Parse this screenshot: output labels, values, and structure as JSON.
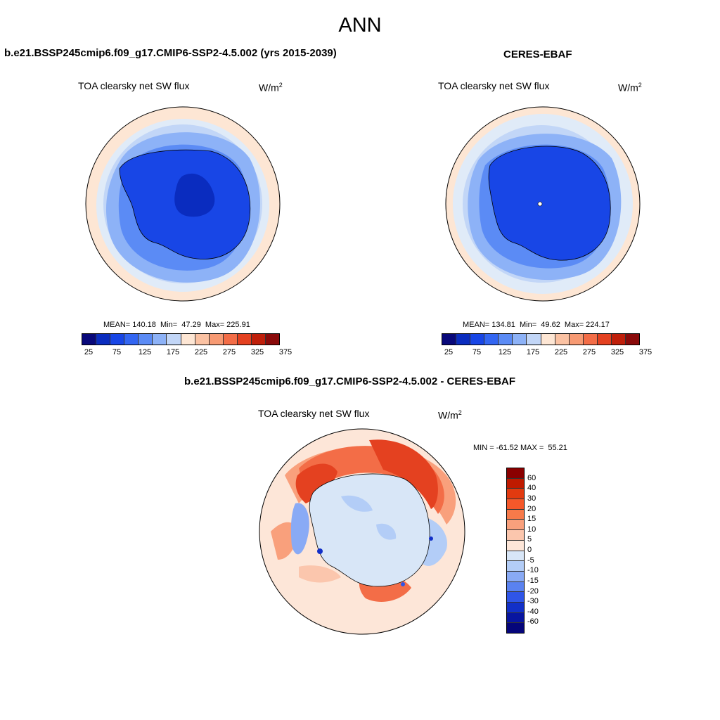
{
  "season": "ANN",
  "top_left": {
    "title": "b.e21.BSSP245cmip6.f09_g17.CMIP6-SSP2-4.5.002 (yrs 2015-2039)",
    "variable": "TOA clearsky net SW flux",
    "units_base": "W/m",
    "units_exp": "2",
    "stats": "MEAN= 140.18  Min=  47.29  Max= 225.91"
  },
  "top_right": {
    "title": "CERES-EBAF",
    "variable": "TOA clearsky net SW flux",
    "units_base": "W/m",
    "units_exp": "2",
    "stats": "MEAN= 134.81  Min=  49.62  Max= 224.17"
  },
  "diff": {
    "title": "b.e21.BSSP245cmip6.f09_g17.CMIP6-SSP2-4.5.002 - CERES-EBAF",
    "variable": "TOA clearsky net SW flux",
    "units_base": "W/m",
    "units_exp": "2",
    "minmax": "MIN = -61.52 MAX =  55.21"
  },
  "abs_colorbar": {
    "colors": [
      "#08087a",
      "#0a2cbf",
      "#1846e6",
      "#3366f2",
      "#5b8bf5",
      "#8db2f7",
      "#c2d6f7",
      "#fde6d4",
      "#fbc2a3",
      "#f79a73",
      "#f36d47",
      "#e44120",
      "#bf1f0a",
      "#8a0a0a"
    ],
    "tick_labels": [
      "25",
      "75",
      "125",
      "175",
      "225",
      "275",
      "325",
      "375"
    ]
  },
  "diff_colorbar": {
    "colors": [
      "#8a0000",
      "#bf1a00",
      "#e23a10",
      "#f5582a",
      "#f77a4a",
      "#f9a07c",
      "#fbc6ad",
      "#fde6d8",
      "#d8e6f7",
      "#b3cdf7",
      "#89aaf5",
      "#5a82f0",
      "#2f55e8",
      "#1230c8",
      "#0815a0",
      "#05057a"
    ],
    "tick_labels": [
      "60",
      "40",
      "30",
      "20",
      "15",
      "10",
      "5",
      "0",
      "-5",
      "-10",
      "-15",
      "-20",
      "-30",
      "-40",
      "-60"
    ]
  }
}
